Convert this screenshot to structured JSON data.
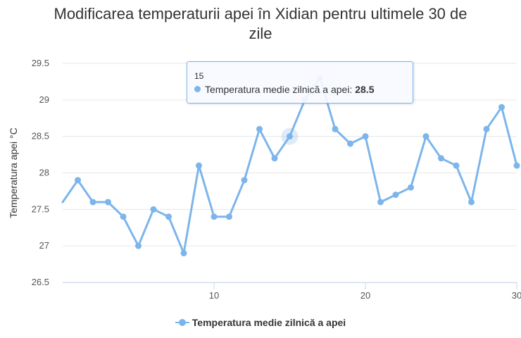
{
  "chart_data": {
    "type": "line",
    "title": "Modificarea temperaturii apei în Xidian pentru ultimele 30 de zile",
    "title_lines": [
      "Modificarea temperaturii apei în Xidian pentru ultimele 30 de",
      "zile"
    ],
    "ylabel": "Temperatura apei °C",
    "xlabel": "",
    "ylim": [
      26.5,
      29.5
    ],
    "xlim": [
      0,
      30
    ],
    "y_ticks": [
      26.5,
      27,
      27.5,
      28,
      28.5,
      29,
      29.5
    ],
    "y_tick_labels": [
      "26.5",
      "27",
      "27.5",
      "28",
      "28.5",
      "29",
      "29.5"
    ],
    "x_ticks": [
      10,
      20,
      30
    ],
    "x_tick_labels": [
      "10",
      "20",
      "30"
    ],
    "grid": "horizontal",
    "legend_position": "bottom-center",
    "series": [
      {
        "name": "Temperatura medie zilnică a apei",
        "color": "#7cb5ec",
        "x": [
          0,
          1,
          2,
          3,
          4,
          5,
          6,
          7,
          8,
          9,
          10,
          11,
          12,
          13,
          14,
          15,
          16,
          17,
          18,
          19,
          20,
          21,
          22,
          23,
          24,
          25,
          26,
          27,
          28,
          29,
          30
        ],
        "values": [
          27.6,
          27.9,
          27.6,
          27.6,
          27.4,
          27.0,
          27.5,
          27.4,
          26.9,
          28.1,
          27.4,
          27.4,
          27.9,
          28.6,
          28.2,
          28.5,
          29.0,
          29.3,
          28.6,
          28.4,
          28.5,
          27.6,
          27.7,
          27.8,
          28.5,
          28.2,
          28.1,
          27.6,
          28.6,
          28.9,
          28.1
        ]
      }
    ],
    "hovered_index": 15,
    "tooltip": {
      "header": "15",
      "series_label": "Temperatura medie zilnică a apei:",
      "value": "28.5"
    }
  }
}
